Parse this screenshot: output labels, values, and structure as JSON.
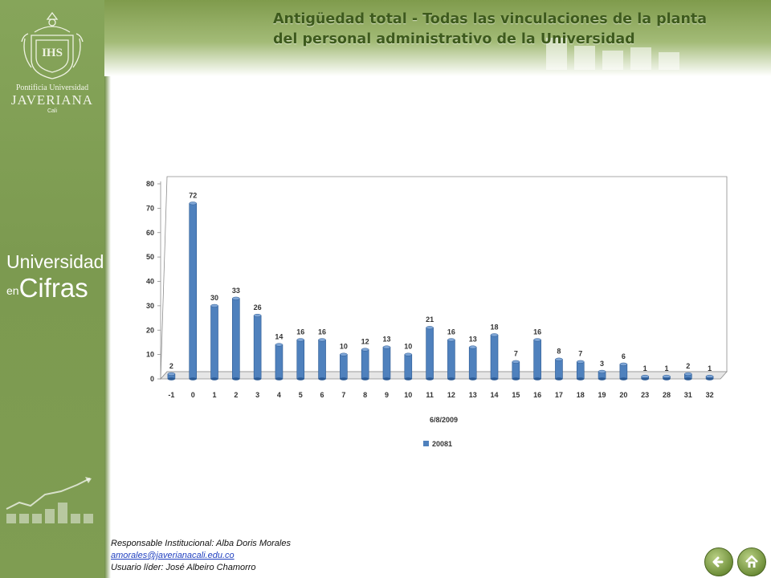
{
  "header": {
    "title_line1": "Antigüedad total -  Todas las vinculaciones   de la planta",
    "title_line2": "del personal administrativo  de la Universidad"
  },
  "sidebar": {
    "logo": {
      "line1": "Pontificia Universidad",
      "line2": "JAVERIANA",
      "line3": "Cali"
    },
    "brand": {
      "word1": "Universidad",
      "word2": "en",
      "word3": "Cifras"
    }
  },
  "footer": {
    "responsible": "Responsable Institucional: Alba Doris Morales",
    "email": "amorales@javerianacali.edu.co",
    "leader": "Usuario líder: José  Albeiro Chamorro"
  },
  "nav": {
    "back_icon": "back-arrow-icon",
    "home_icon": "home-icon"
  },
  "colors": {
    "bar": "#4f81bd",
    "bar_dark": "#2c5a93",
    "bar_top": "#7fa6d6",
    "header_green": "#3d5a1c"
  },
  "chart_data": {
    "type": "bar",
    "categories": [
      "-1",
      "0",
      "1",
      "2",
      "3",
      "4",
      "5",
      "6",
      "7",
      "8",
      "9",
      "10",
      "11",
      "12",
      "13",
      "14",
      "15",
      "16",
      "17",
      "18",
      "19",
      "20",
      "23",
      "28",
      "31",
      "32"
    ],
    "series": [
      {
        "name": "20081",
        "values": [
          2,
          72,
          30,
          33,
          26,
          14,
          16,
          16,
          10,
          12,
          13,
          10,
          21,
          16,
          13,
          18,
          7,
          16,
          8,
          7,
          3,
          6,
          1,
          1,
          2,
          1
        ]
      }
    ],
    "xlabel": "6/8/2009",
    "ylabel": "",
    "ylim": [
      0,
      80
    ],
    "yticks": [
      0,
      10,
      20,
      30,
      40,
      50,
      60,
      70,
      80
    ],
    "data_labels": true,
    "grid": false,
    "legend_position": "bottom"
  }
}
